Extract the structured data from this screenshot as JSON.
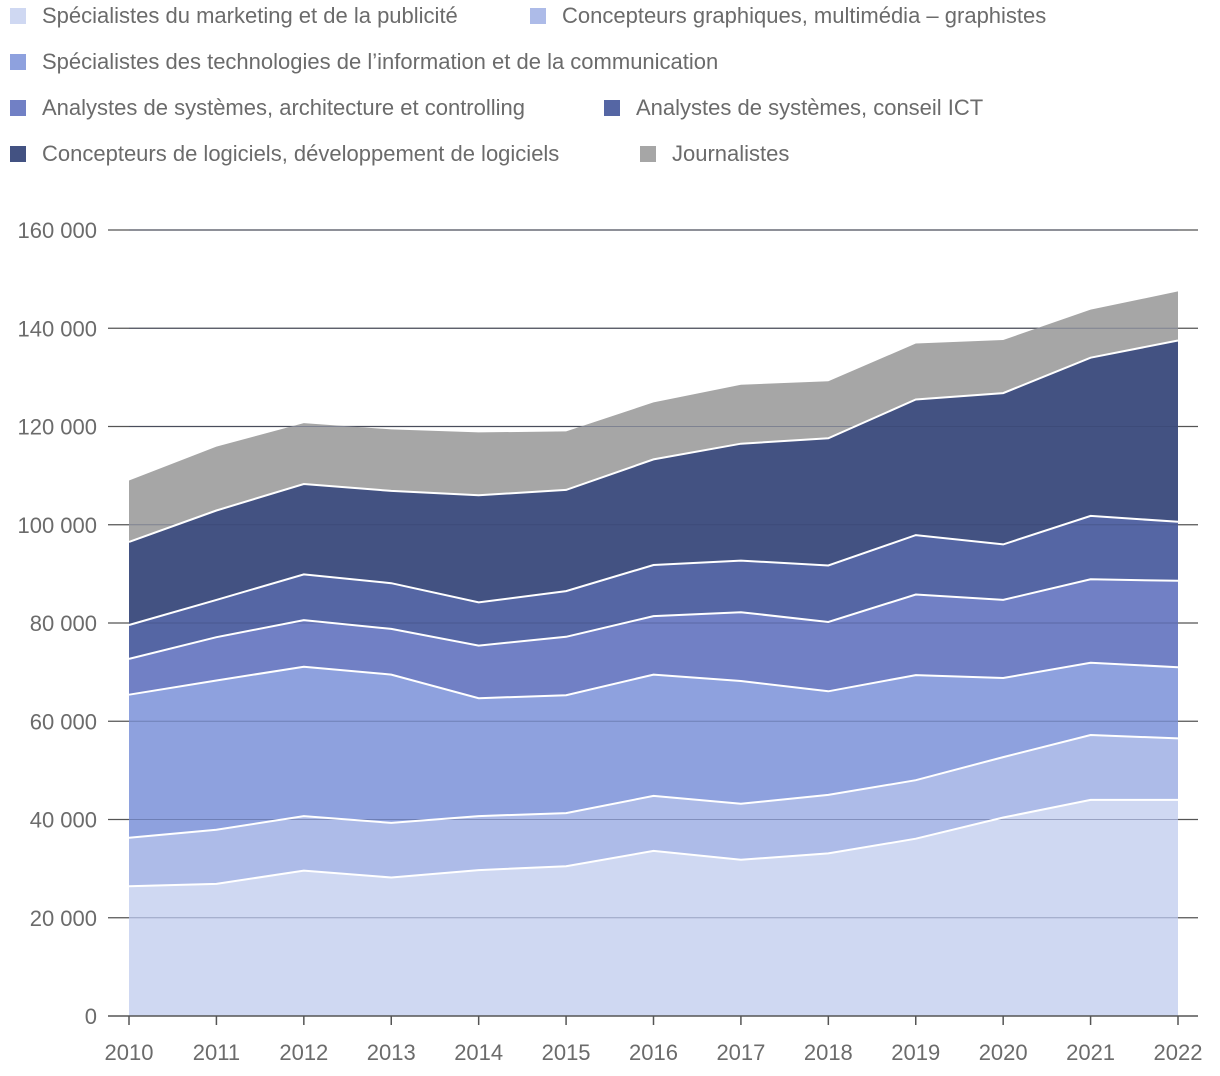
{
  "chart_data": {
    "type": "area",
    "stacked": true,
    "title": "",
    "xlabel": "",
    "ylabel": "",
    "categories": [
      "2010",
      "2011",
      "2012",
      "2013",
      "2014",
      "2015",
      "2016",
      "2017",
      "2018",
      "2019",
      "2020",
      "2021",
      "2022"
    ],
    "ylim": [
      0,
      160000
    ],
    "yticks": [
      0,
      20000,
      40000,
      60000,
      80000,
      100000,
      120000,
      140000,
      160000
    ],
    "ytick_labels": [
      "0",
      "20 000",
      "40 000",
      "60 000",
      "80 000",
      "100 000",
      "120 000",
      "140 000",
      "160 000"
    ],
    "grid": true,
    "legend_position": "top",
    "series": [
      {
        "name": "Spécialistes du marketing et de la publicité",
        "color": "#cfd8f2",
        "values": [
          26400,
          26900,
          29600,
          28200,
          29700,
          30500,
          33600,
          31800,
          33100,
          36100,
          40400,
          44000,
          44000
        ]
      },
      {
        "name": "Concepteurs graphiques, multimédia – graphistes",
        "color": "#adbbe8",
        "values": [
          9900,
          11000,
          11100,
          11100,
          11000,
          10800,
          11200,
          11400,
          11900,
          11900,
          12300,
          13200,
          12500
        ]
      },
      {
        "name": "Spécialistes des technologies de l’information et de la communication",
        "color": "#8ea1de",
        "values": [
          29100,
          30400,
          30400,
          30200,
          24000,
          24000,
          24700,
          25000,
          21100,
          21400,
          16100,
          14700,
          14500
        ]
      },
      {
        "name": "Analystes de systèmes, architecture et controlling",
        "color": "#7180c5",
        "values": [
          7300,
          8800,
          9500,
          9300,
          10700,
          11900,
          11900,
          14000,
          14100,
          16400,
          15900,
          17000,
          17600
        ]
      },
      {
        "name": "Analystes de systèmes, conseil ICT",
        "color": "#5566a4",
        "values": [
          6900,
          7600,
          9300,
          9300,
          8800,
          9300,
          10400,
          10500,
          11500,
          12100,
          11300,
          12900,
          12000
        ]
      },
      {
        "name": "Concepteurs de logiciels, développement de logiciels",
        "color": "#435282",
        "values": [
          16900,
          18200,
          18400,
          18800,
          21800,
          20600,
          21500,
          23800,
          25900,
          27600,
          30800,
          32200,
          36900
        ]
      },
      {
        "name": "Journalistes",
        "color": "#a6a6a6",
        "values": [
          12500,
          13000,
          12400,
          12500,
          12800,
          11900,
          11600,
          12000,
          11600,
          11400,
          10800,
          9800,
          10000
        ]
      }
    ]
  }
}
